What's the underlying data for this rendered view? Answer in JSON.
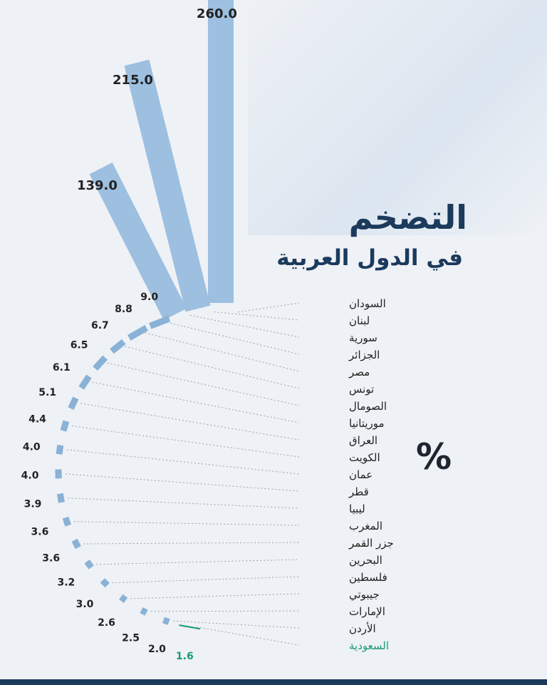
{
  "title": "التضخم",
  "subtitle": "في الدول العربية",
  "unit_label": "%",
  "colors": {
    "bar": "#9dbfe0",
    "bar_stroke": "#8ab1d6",
    "text": "#222222",
    "highlight": "#1b9a76",
    "title": "#1b3a5c"
  },
  "chart_data": {
    "type": "bar",
    "categories": [
      "السودان",
      "لبنان",
      "سورية",
      "الجزائر",
      "مصر",
      "تونس",
      "الصومال",
      "موريتانيا",
      "العراق",
      "الكويت",
      "عمان",
      "قطر",
      "ليبيا",
      "المغرب",
      "جزر القمر",
      "البحرين",
      "فلسطين",
      "جيبوتي",
      "الإمارات",
      "الأردن",
      "السعودية"
    ],
    "values": [
      260.0,
      215.0,
      139.0,
      9.0,
      8.8,
      6.7,
      6.5,
      6.1,
      5.1,
      4.4,
      4.0,
      4.0,
      3.9,
      3.6,
      3.6,
      3.2,
      3.0,
      2.6,
      2.5,
      2.0,
      1.6
    ],
    "value_labels": [
      "260.0",
      "215.0",
      "139.0",
      "9.0",
      "8.8",
      "6.7",
      "6.5",
      "6.1",
      "5.1",
      "4.4",
      "4.0",
      "4.0",
      "3.9",
      "3.6",
      "3.6",
      "3.2",
      "3.0",
      "2.6",
      "2.5",
      "2.0",
      "1.6"
    ],
    "highlighted_category": "السعودية",
    "legend": "none",
    "grid": false
  }
}
